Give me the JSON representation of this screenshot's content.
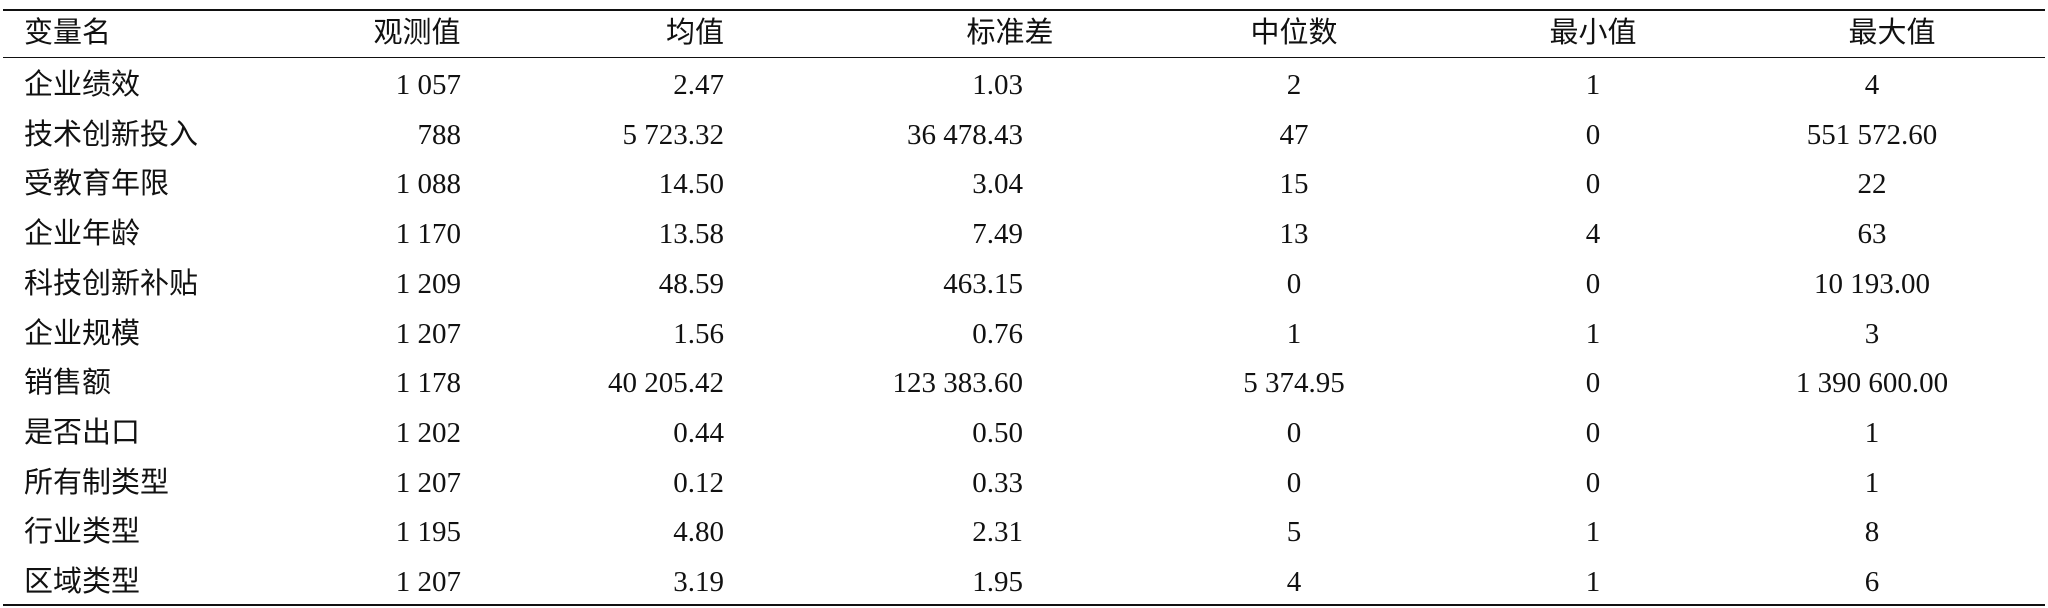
{
  "table": {
    "header": [
      "变量名",
      "观测值",
      "均值",
      "标准差",
      "中位数",
      "最小值",
      "最大值"
    ],
    "rows": [
      [
        "企业绩效",
        "1 057",
        "2.47",
        "1.03",
        "2",
        "1",
        "4"
      ],
      [
        "技术创新投入",
        "788",
        "5 723.32",
        "36 478.43",
        "47",
        "0",
        "551 572.60"
      ],
      [
        "受教育年限",
        "1 088",
        "14.50",
        "3.04",
        "15",
        "0",
        "22"
      ],
      [
        "企业年龄",
        "1 170",
        "13.58",
        "7.49",
        "13",
        "4",
        "63"
      ],
      [
        "科技创新补贴",
        "1 209",
        "48.59",
        "463.15",
        "0",
        "0",
        "10 193.00"
      ],
      [
        "企业规模",
        "1 207",
        "1.56",
        "0.76",
        "1",
        "1",
        "3"
      ],
      [
        "销售额",
        "1 178",
        "40 205.42",
        "123 383.60",
        "5 374.95",
        "0",
        "1 390 600.00"
      ],
      [
        "是否出口",
        "1 202",
        "0.44",
        "0.50",
        "0",
        "0",
        "1"
      ],
      [
        "所有制类型",
        "1 207",
        "0.12",
        "0.33",
        "0",
        "0",
        "1"
      ],
      [
        "行业类型",
        "1 195",
        "4.80",
        "2.31",
        "5",
        "1",
        "8"
      ],
      [
        "区域类型",
        "1 207",
        "3.19",
        "1.95",
        "4",
        "1",
        "6"
      ]
    ]
  }
}
